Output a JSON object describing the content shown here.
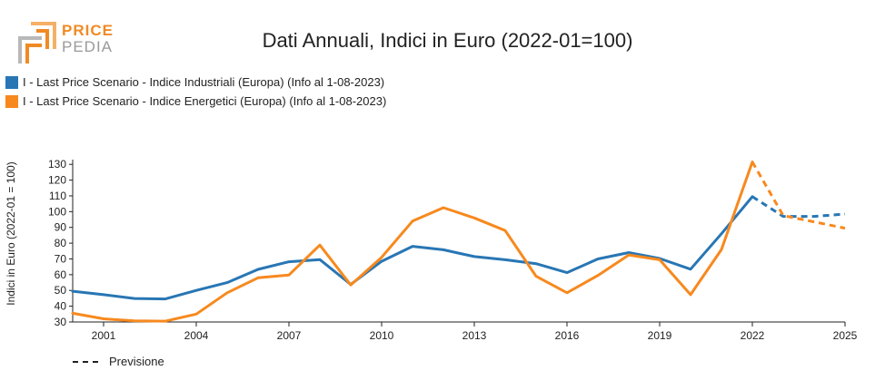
{
  "logo": {
    "line1": "PRICE",
    "line2": "PEDIA"
  },
  "chart_data": {
    "type": "line",
    "title": "Dati Annuali, Indici in Euro (2022-01=100)",
    "xlabel": "",
    "ylabel": "Indici in Euro (2022-01 = 100)",
    "xlim": [
      2000,
      2025
    ],
    "ylim": [
      30,
      133
    ],
    "x_ticks": [
      2001,
      2004,
      2007,
      2010,
      2013,
      2016,
      2019,
      2022,
      2025
    ],
    "y_ticks": [
      30,
      40,
      50,
      60,
      70,
      80,
      90,
      100,
      110,
      120,
      130
    ],
    "forecast_start": 2022,
    "forecast_label": "Previsione",
    "grid": false,
    "legend_position": "top-left",
    "series": [
      {
        "name": "I - Last Price Scenario - Indice Industriali (Europa) (Info al 1-08-2023)",
        "color": "#2876b4",
        "x": [
          2000,
          2001,
          2002,
          2003,
          2004,
          2005,
          2006,
          2007,
          2008,
          2009,
          2010,
          2011,
          2012,
          2013,
          2014,
          2015,
          2016,
          2017,
          2018,
          2019,
          2020,
          2021,
          2022,
          2023,
          2024,
          2025
        ],
        "values": [
          49.5,
          47.3,
          44.9,
          44.6,
          50.0,
          55.0,
          63.4,
          68.2,
          69.6,
          53.8,
          68.5,
          78.0,
          75.8,
          71.5,
          69.5,
          67.0,
          61.3,
          70.0,
          74.0,
          70.3,
          63.5,
          86.0,
          109.5,
          97.0,
          97.0,
          98.5
        ]
      },
      {
        "name": "I - Last Price Scenario - Indice Energetici (Europa) (Info al 1-08-2023)",
        "color": "#f7891e",
        "x": [
          2000,
          2001,
          2002,
          2003,
          2004,
          2005,
          2006,
          2007,
          2008,
          2009,
          2010,
          2011,
          2012,
          2013,
          2014,
          2015,
          2016,
          2017,
          2018,
          2019,
          2020,
          2021,
          2022,
          2023,
          2024,
          2025
        ],
        "values": [
          35.5,
          32.0,
          30.7,
          30.5,
          35.0,
          48.5,
          58.0,
          59.8,
          78.8,
          53.5,
          71.0,
          94.0,
          102.5,
          96.0,
          88.0,
          59.0,
          48.5,
          59.5,
          72.5,
          69.5,
          47.3,
          76.0,
          131.5,
          97.5,
          93.5,
          89.5
        ]
      }
    ]
  }
}
